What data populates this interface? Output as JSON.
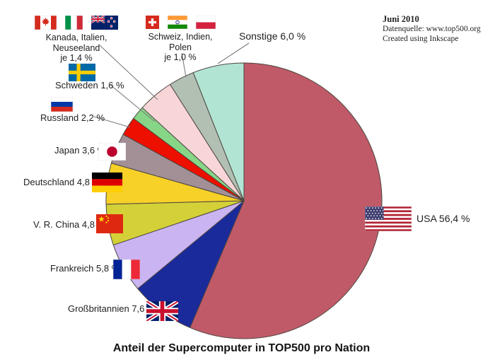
{
  "title": "Anteil der Supercomputer in TOP500 pro Nation",
  "meta": {
    "date": "Juni 2010",
    "source": "Datenquelle: www.top500.org",
    "credit": "Created using Inkscape"
  },
  "chart_data": {
    "type": "pie",
    "title": "Anteil der Supercomputer in TOP500 pro Nation",
    "unit": "%",
    "direction": "clockwise",
    "start_angle_deg": 0,
    "stroke_color": "#4c463f",
    "slices": [
      {
        "key": "usa",
        "label": "USA",
        "value": 56.4,
        "display": "USA 56,4 %",
        "color": "#c05a68"
      },
      {
        "key": "grossbritannien",
        "label": "Großbritannien",
        "value": 7.6,
        "display": "Großbritannien 7,6 %",
        "color": "#1b2a9a"
      },
      {
        "key": "frankreich",
        "label": "Frankreich",
        "value": 5.8,
        "display": "Frankreich 5,8 %",
        "color": "#cab4f2"
      },
      {
        "key": "china",
        "label": "V. R. China",
        "value": 4.8,
        "display": "V. R. China 4,8 %",
        "color": "#d4d138"
      },
      {
        "key": "deutschland",
        "label": "Deutschland",
        "value": 4.8,
        "display": "Deutschland 4,8 %",
        "color": "#f7d028"
      },
      {
        "key": "japan",
        "label": "Japan",
        "value": 3.6,
        "display": "Japan 3,6 %",
        "color": "#a39097"
      },
      {
        "key": "russland",
        "label": "Russland",
        "value": 2.2,
        "display": "Russland 2,2 %",
        "color": "#ed0f00"
      },
      {
        "key": "schweden",
        "label": "Schweden",
        "value": 1.6,
        "display": "Schweden 1,6 %",
        "color": "#87d687"
      },
      {
        "key": "kanada-italien-neuseeland",
        "label": "Kanada, Italien, Neuseeland",
        "value": 4.2,
        "per_country": 1.4,
        "display": "Kanada, Italien, Neuseeland je 1,4 %",
        "color": "#f8d6d8"
      },
      {
        "key": "schweiz-indien-polen",
        "label": "Schweiz, Indien, Polen",
        "value": 3.0,
        "per_country": 1.0,
        "display": "Schweiz, Indien, Polen je 1,0 %",
        "color": "#b2c0b3"
      },
      {
        "key": "sonstige",
        "label": "Sonstige",
        "value": 6.0,
        "display": "Sonstige 6,0 %",
        "color": "#b2e4d4"
      }
    ]
  },
  "labels": {
    "canada_group_line1": "Kanada, Italien, Neuseeland",
    "canada_group_line2": "je 1,4 %",
    "swiss_group_line1": "Schweiz, Indien, Polen",
    "swiss_group_line2": "je 1,0 %",
    "sonstige": "Sonstige 6,0 %",
    "schweden": "Schweden 1,6 %",
    "russland": "Russland 2,2 %",
    "japan": "Japan 3,6 %",
    "deutschland": "Deutschland 4,8 %",
    "china": "V. R. China 4,8 %",
    "frankreich": "Frankreich 5,8 %",
    "grossbritannien": "Großbritannien 7,6 %",
    "usa": "USA 56,4 %"
  }
}
